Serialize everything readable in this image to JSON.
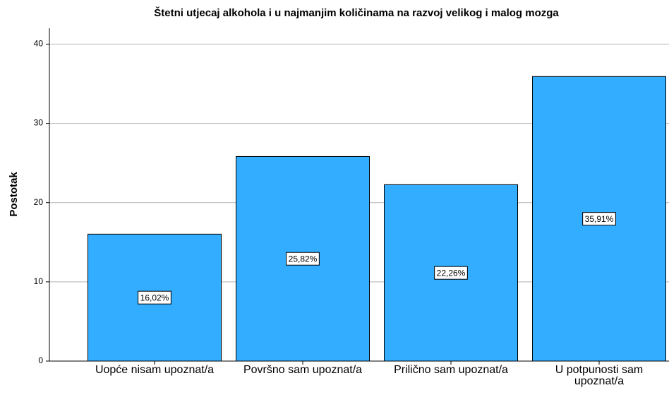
{
  "chart_data": {
    "type": "bar",
    "title": "Štetni utjecaj alkohola i u najmanjim količinama na razvoj velikog i malog mozga",
    "y_label": "Postotak",
    "categories": [
      "Uopće nisam upoznat/a",
      "Površno sam upoznat/a",
      "Prilično sam upoznat/a",
      "U potpunosti sam upoznat/a"
    ],
    "values": [
      16.02,
      25.82,
      22.26,
      35.91
    ],
    "value_labels": [
      "16,02%",
      "25,82%",
      "22,26%",
      "35,91%"
    ],
    "color": "#33adff",
    "ylim": [
      0,
      42
    ],
    "yticks": [
      0,
      10,
      20,
      30,
      40
    ],
    "grid": true
  }
}
